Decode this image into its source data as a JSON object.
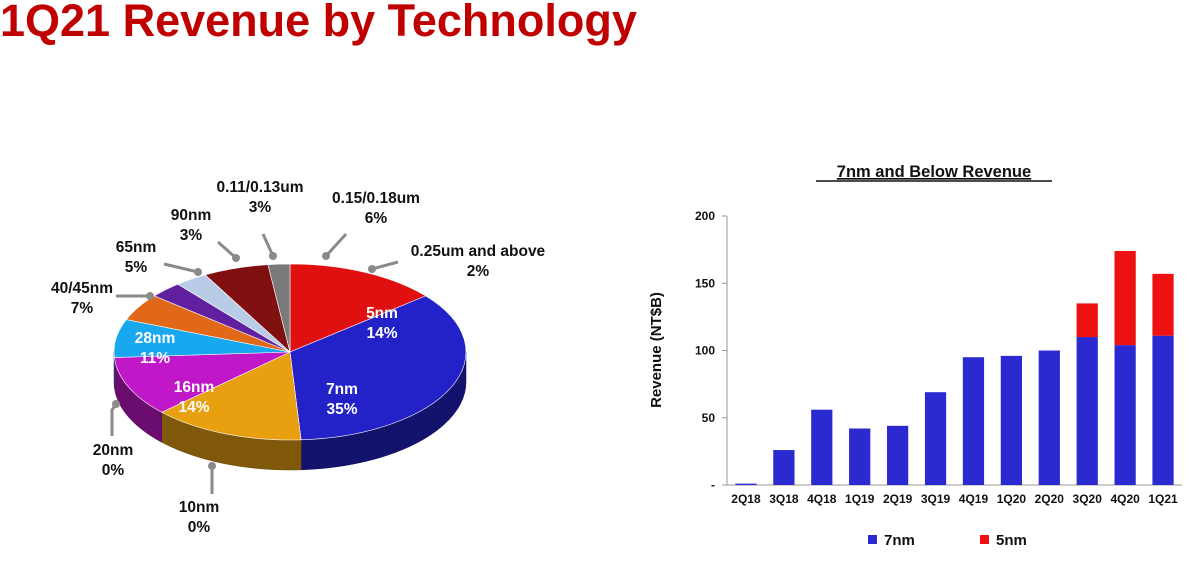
{
  "page": {
    "title": "1Q21 Revenue by Technology"
  },
  "chart_data": [
    {
      "type": "pie",
      "title": "",
      "slices": [
        {
          "label": "5nm",
          "pct_text": "14%",
          "value": 14,
          "color": "#e01010"
        },
        {
          "label": "7nm",
          "pct_text": "35%",
          "value": 35,
          "color": "#2222c8"
        },
        {
          "label": "10nm",
          "pct_text": "0%",
          "value": 0,
          "color": "#555555"
        },
        {
          "label": "16nm",
          "pct_text": "14%",
          "value": 14,
          "color": "#e8a010"
        },
        {
          "label": "20nm",
          "pct_text": "0%",
          "value": 0,
          "color": "#888888"
        },
        {
          "label": "28nm",
          "pct_text": "11%",
          "value": 11,
          "color": "#c018c8"
        },
        {
          "label": "40/45nm",
          "pct_text": "7%",
          "value": 7,
          "color": "#18a8f0"
        },
        {
          "label": "65nm",
          "pct_text": "5%",
          "value": 5,
          "color": "#e06818"
        },
        {
          "label": "90nm",
          "pct_text": "3%",
          "value": 3,
          "color": "#6020a0"
        },
        {
          "label": "0.11/0.13um",
          "pct_text": "3%",
          "value": 3,
          "color": "#b8cce8"
        },
        {
          "label": "0.15/0.18um",
          "pct_text": "6%",
          "value": 6,
          "color": "#801010"
        },
        {
          "label": "0.25um and above",
          "pct_text": "2%",
          "value": 2,
          "color": "#7a7a7a"
        }
      ]
    },
    {
      "type": "bar",
      "stacked": true,
      "title": "7nm and Below Revenue",
      "ylabel": "Revenue (NT$B)",
      "xlabel": "",
      "ylim": [
        0,
        200
      ],
      "yticks": [
        0,
        50,
        100,
        150,
        200
      ],
      "ytick_labels": [
        "-",
        "50",
        "100",
        "150",
        "200"
      ],
      "categories": [
        "2Q18",
        "3Q18",
        "4Q18",
        "1Q19",
        "2Q19",
        "3Q19",
        "4Q19",
        "1Q20",
        "2Q20",
        "3Q20",
        "4Q20",
        "1Q21"
      ],
      "series": [
        {
          "name": "7nm",
          "color": "#2a2ad0",
          "values": [
            1,
            26,
            56,
            42,
            44,
            69,
            95,
            96,
            100,
            110,
            104,
            111
          ]
        },
        {
          "name": "5nm",
          "color": "#ee1111",
          "values": [
            0,
            0,
            0,
            0,
            0,
            0,
            0,
            0,
            0,
            25,
            70,
            46
          ]
        }
      ],
      "legend": "bottom",
      "grid": false
    }
  ]
}
